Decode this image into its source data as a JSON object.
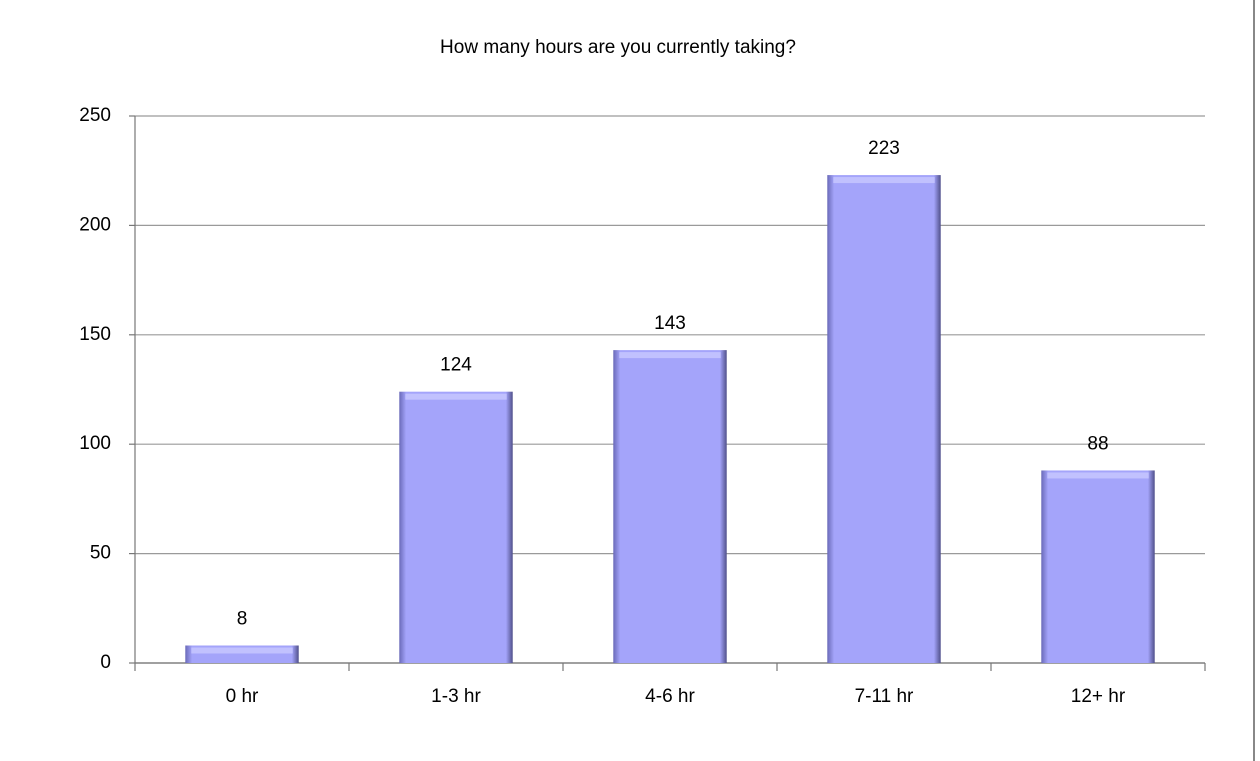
{
  "chart_data": {
    "type": "bar",
    "title": "How many hours are you currently taking?",
    "categories": [
      "0 hr",
      "1-3 hr",
      "4-6 hr",
      "7-11 hr",
      "12+ hr"
    ],
    "values": [
      8,
      124,
      143,
      223,
      88
    ],
    "color": "#a4a4fa",
    "ylim": [
      0,
      250
    ],
    "yticks": [
      0,
      50,
      100,
      150,
      200,
      250
    ],
    "grid": true
  }
}
